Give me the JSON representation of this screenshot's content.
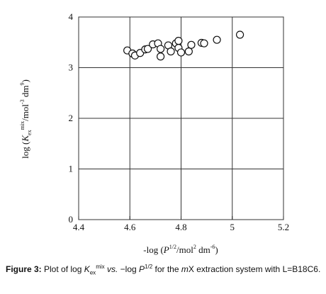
{
  "chart_data": {
    "type": "scatter",
    "title": "",
    "xlabel": "-log (P^1/2/mol^2 dm^-6)",
    "ylabel": "log (K_ex^mix/mol^-3 dm^9)",
    "xlim": [
      4.4,
      5.2
    ],
    "ylim": [
      0,
      4
    ],
    "x_ticks": [
      "4.4",
      "4.6",
      "4.8",
      "5",
      "5.2"
    ],
    "y_ticks": [
      "0",
      "1",
      "2",
      "3",
      "4"
    ],
    "grid": true,
    "legend": "none",
    "marker": "open-circle",
    "series": [
      {
        "points": [
          {
            "x": 4.59,
            "y": 3.34
          },
          {
            "x": 4.61,
            "y": 3.28
          },
          {
            "x": 4.62,
            "y": 3.24
          },
          {
            "x": 4.64,
            "y": 3.29
          },
          {
            "x": 4.66,
            "y": 3.36
          },
          {
            "x": 4.67,
            "y": 3.37
          },
          {
            "x": 4.69,
            "y": 3.46
          },
          {
            "x": 4.71,
            "y": 3.48
          },
          {
            "x": 4.72,
            "y": 3.22
          },
          {
            "x": 4.72,
            "y": 3.37
          },
          {
            "x": 4.75,
            "y": 3.44
          },
          {
            "x": 4.76,
            "y": 3.32
          },
          {
            "x": 4.78,
            "y": 3.48
          },
          {
            "x": 4.79,
            "y": 3.53
          },
          {
            "x": 4.79,
            "y": 3.39
          },
          {
            "x": 4.8,
            "y": 3.3
          },
          {
            "x": 4.83,
            "y": 3.32
          },
          {
            "x": 4.84,
            "y": 3.45
          },
          {
            "x": 4.88,
            "y": 3.49
          },
          {
            "x": 4.89,
            "y": 3.48
          },
          {
            "x": 4.94,
            "y": 3.55
          },
          {
            "x": 5.03,
            "y": 3.65
          }
        ]
      }
    ]
  },
  "caption": {
    "label": "Figure 3:",
    "text_1": " Plot of log ",
    "k": "K",
    "k_sub": "ex",
    "k_sup": "mix",
    "text_2": " ",
    "vs": "vs.",
    "text_3": " −log ",
    "p": "P",
    "p_sup": "1/2",
    "text_4": " for the ",
    "m": "m",
    "text_5": "X extraction system with L=B18C6."
  },
  "ylabel_parts": {
    "pre": "log (",
    "k": "K",
    "sub": "ex",
    "sup": "mix",
    "post": "/mol",
    "unit_sup1": "-3",
    "mid": " dm",
    "unit_sup2": "9",
    "end": ")"
  },
  "xlabel_parts": {
    "pre": "-log (",
    "p": "P",
    "sup": "1/2",
    "post": "/mol",
    "unit_sup1": "2",
    "mid": " dm",
    "unit_sup2": "-6",
    "end": ")"
  }
}
